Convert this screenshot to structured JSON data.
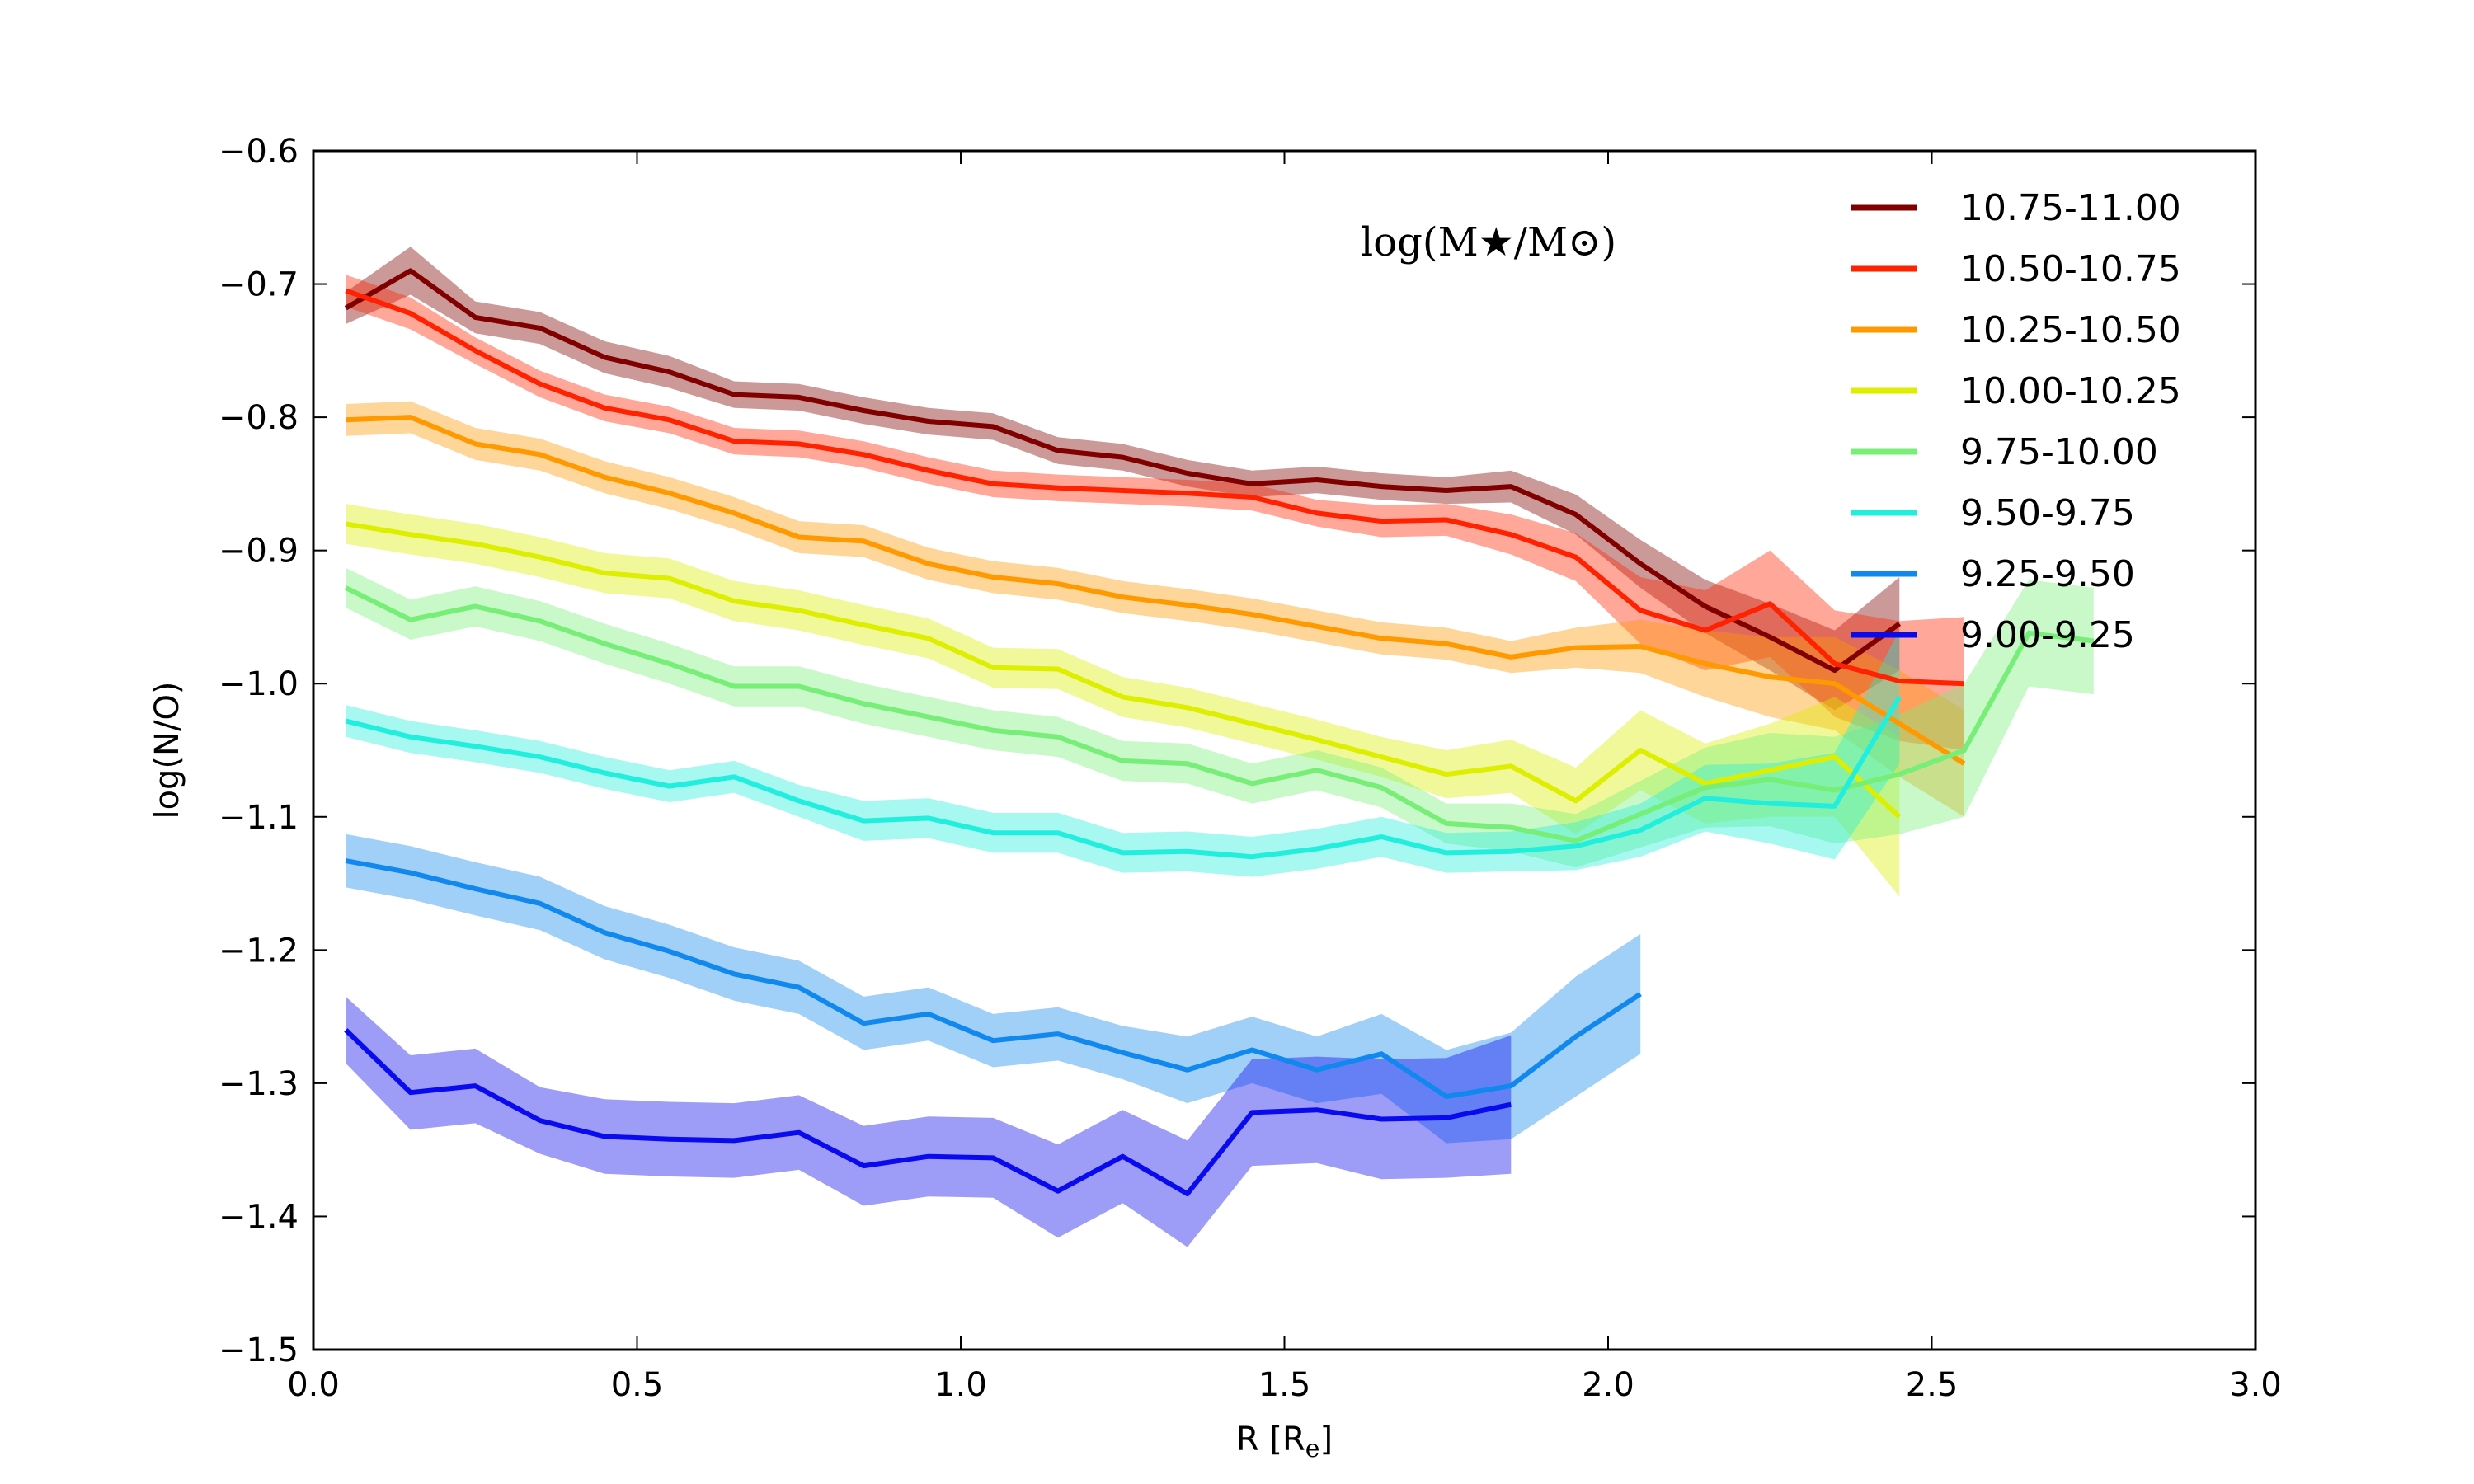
{
  "chart_data": {
    "type": "line",
    "title": "",
    "xlabel": "R [R",
    "xlabel_sub": "e",
    "xlabel_close": "]",
    "ylabel": "log(N/O)",
    "xlim": [
      0.0,
      3.0
    ],
    "ylim": [
      -1.5,
      -0.6
    ],
    "x_ticks": [
      0.0,
      0.5,
      1.0,
      1.5,
      2.0,
      2.5,
      3.0
    ],
    "x_tick_labels": [
      "0.0",
      "0.5",
      "1.0",
      "1.5",
      "2.0",
      "2.5",
      "3.0"
    ],
    "y_ticks": [
      -1.5,
      -1.4,
      -1.3,
      -1.2,
      -1.1,
      -1.0,
      -0.9,
      -0.8,
      -0.7,
      -0.6
    ],
    "y_tick_labels": [
      "−1.5",
      "−1.4",
      "−1.3",
      "−1.2",
      "−1.1",
      "−1.0",
      "−0.9",
      "−0.8",
      "−0.7",
      "−0.6"
    ],
    "legend_title": "log(M★/M⊙)",
    "legend_position": "top-right",
    "series": [
      {
        "name": "10.75-11.00",
        "color": "#800000",
        "x": [
          0.05,
          0.15,
          0.25,
          0.35,
          0.45,
          0.55,
          0.65,
          0.75,
          0.85,
          0.95,
          1.05,
          1.15,
          1.25,
          1.35,
          1.45,
          1.55,
          1.65,
          1.75,
          1.85,
          1.95,
          2.05,
          2.15,
          2.25,
          2.35,
          2.45
        ],
        "values": [
          -0.718,
          -0.69,
          -0.725,
          -0.733,
          -0.755,
          -0.766,
          -0.783,
          -0.785,
          -0.795,
          -0.803,
          -0.807,
          -0.825,
          -0.83,
          -0.842,
          -0.85,
          -0.847,
          -0.852,
          -0.855,
          -0.852,
          -0.873,
          -0.91,
          -0.942,
          -0.965,
          -0.99,
          -0.955
        ],
        "errors": [
          0.012,
          0.018,
          0.012,
          0.012,
          0.012,
          0.012,
          0.01,
          0.01,
          0.01,
          0.01,
          0.01,
          0.01,
          0.01,
          0.01,
          0.01,
          0.01,
          0.01,
          0.01,
          0.012,
          0.015,
          0.018,
          0.02,
          0.025,
          0.03,
          0.035
        ]
      },
      {
        "name": "10.50-10.75",
        "color": "#ff2200",
        "x": [
          0.05,
          0.15,
          0.25,
          0.35,
          0.45,
          0.55,
          0.65,
          0.75,
          0.85,
          0.95,
          1.05,
          1.15,
          1.25,
          1.35,
          1.45,
          1.55,
          1.65,
          1.75,
          1.85,
          1.95,
          2.05,
          2.15,
          2.25,
          2.35,
          2.45,
          2.55
        ],
        "values": [
          -0.705,
          -0.722,
          -0.75,
          -0.775,
          -0.793,
          -0.802,
          -0.818,
          -0.82,
          -0.828,
          -0.84,
          -0.85,
          -0.853,
          -0.855,
          -0.857,
          -0.86,
          -0.872,
          -0.878,
          -0.877,
          -0.888,
          -0.905,
          -0.945,
          -0.96,
          -0.94,
          -0.985,
          -0.998,
          -1.0
        ],
        "errors": [
          0.012,
          0.012,
          0.01,
          0.01,
          0.01,
          0.01,
          0.01,
          0.01,
          0.01,
          0.01,
          0.01,
          0.01,
          0.01,
          0.01,
          0.01,
          0.01,
          0.012,
          0.012,
          0.015,
          0.018,
          0.025,
          0.03,
          0.04,
          0.04,
          0.045,
          0.05
        ]
      },
      {
        "name": "10.25-10.50",
        "color": "#ff9900",
        "x": [
          0.05,
          0.15,
          0.25,
          0.35,
          0.45,
          0.55,
          0.65,
          0.75,
          0.85,
          0.95,
          1.05,
          1.15,
          1.25,
          1.35,
          1.45,
          1.55,
          1.65,
          1.75,
          1.85,
          1.95,
          2.05,
          2.15,
          2.25,
          2.35,
          2.45,
          2.55
        ],
        "values": [
          -0.802,
          -0.8,
          -0.82,
          -0.828,
          -0.845,
          -0.857,
          -0.872,
          -0.89,
          -0.893,
          -0.91,
          -0.92,
          -0.925,
          -0.935,
          -0.941,
          -0.948,
          -0.957,
          -0.966,
          -0.97,
          -0.98,
          -0.973,
          -0.972,
          -0.985,
          -0.995,
          -1.0,
          -1.03,
          -1.06
        ],
        "errors": [
          0.012,
          0.012,
          0.012,
          0.012,
          0.012,
          0.012,
          0.012,
          0.012,
          0.012,
          0.012,
          0.012,
          0.012,
          0.012,
          0.012,
          0.012,
          0.012,
          0.012,
          0.012,
          0.012,
          0.015,
          0.02,
          0.025,
          0.03,
          0.035,
          0.04,
          0.04
        ]
      },
      {
        "name": "10.00-10.25",
        "color": "#ddee00",
        "x": [
          0.05,
          0.15,
          0.25,
          0.35,
          0.45,
          0.55,
          0.65,
          0.75,
          0.85,
          0.95,
          1.05,
          1.15,
          1.25,
          1.35,
          1.45,
          1.55,
          1.65,
          1.75,
          1.85,
          1.95,
          2.05,
          2.15,
          2.25,
          2.35,
          2.45
        ],
        "values": [
          -0.88,
          -0.888,
          -0.895,
          -0.905,
          -0.917,
          -0.921,
          -0.938,
          -0.945,
          -0.956,
          -0.966,
          -0.988,
          -0.989,
          -1.01,
          -1.018,
          -1.03,
          -1.042,
          -1.055,
          -1.068,
          -1.062,
          -1.088,
          -1.05,
          -1.075,
          -1.065,
          -1.055,
          -1.1
        ],
        "errors": [
          0.015,
          0.015,
          0.015,
          0.015,
          0.015,
          0.015,
          0.015,
          0.015,
          0.015,
          0.015,
          0.015,
          0.015,
          0.015,
          0.015,
          0.015,
          0.015,
          0.015,
          0.018,
          0.02,
          0.025,
          0.03,
          0.03,
          0.035,
          0.045,
          0.06
        ]
      },
      {
        "name": "9.75-10.00",
        "color": "#77ee77",
        "x": [
          0.05,
          0.15,
          0.25,
          0.35,
          0.45,
          0.55,
          0.65,
          0.75,
          0.85,
          0.95,
          1.05,
          1.15,
          1.25,
          1.35,
          1.45,
          1.55,
          1.65,
          1.75,
          1.85,
          1.95,
          2.05,
          2.15,
          2.25,
          2.35,
          2.45,
          2.55,
          2.65,
          2.75
        ],
        "values": [
          -0.928,
          -0.952,
          -0.942,
          -0.953,
          -0.97,
          -0.985,
          -1.002,
          -1.002,
          -1.015,
          -1.025,
          -1.035,
          -1.04,
          -1.058,
          -1.06,
          -1.075,
          -1.065,
          -1.078,
          -1.105,
          -1.108,
          -1.118,
          -1.098,
          -1.078,
          -1.072,
          -1.08,
          -1.068,
          -1.05,
          -0.962,
          -0.968
        ],
        "errors": [
          0.015,
          0.015,
          0.015,
          0.015,
          0.015,
          0.015,
          0.015,
          0.015,
          0.015,
          0.015,
          0.015,
          0.015,
          0.015,
          0.015,
          0.015,
          0.015,
          0.015,
          0.015,
          0.018,
          0.02,
          0.025,
          0.03,
          0.035,
          0.04,
          0.045,
          0.05,
          0.04,
          0.04
        ]
      },
      {
        "name": "9.50-9.75",
        "color": "#22eedd",
        "x": [
          0.05,
          0.15,
          0.25,
          0.35,
          0.45,
          0.55,
          0.65,
          0.75,
          0.85,
          0.95,
          1.05,
          1.15,
          1.25,
          1.35,
          1.45,
          1.55,
          1.65,
          1.75,
          1.85,
          1.95,
          2.05,
          2.15,
          2.25,
          2.35,
          2.45
        ],
        "values": [
          -1.028,
          -1.04,
          -1.047,
          -1.055,
          -1.067,
          -1.077,
          -1.07,
          -1.088,
          -1.103,
          -1.101,
          -1.112,
          -1.112,
          -1.127,
          -1.126,
          -1.13,
          -1.124,
          -1.115,
          -1.127,
          -1.126,
          -1.122,
          -1.11,
          -1.086,
          -1.09,
          -1.092,
          -1.01
        ],
        "errors": [
          0.012,
          0.012,
          0.012,
          0.012,
          0.012,
          0.012,
          0.012,
          0.012,
          0.015,
          0.015,
          0.015,
          0.015,
          0.015,
          0.015,
          0.015,
          0.015,
          0.015,
          0.015,
          0.015,
          0.018,
          0.02,
          0.025,
          0.03,
          0.04,
          0.05
        ]
      },
      {
        "name": "9.25-9.50",
        "color": "#1188ee",
        "x": [
          0.05,
          0.15,
          0.25,
          0.35,
          0.45,
          0.55,
          0.65,
          0.75,
          0.85,
          0.95,
          1.05,
          1.15,
          1.25,
          1.35,
          1.45,
          1.55,
          1.65,
          1.75,
          1.85,
          1.95,
          2.05
        ],
        "values": [
          -1.133,
          -1.142,
          -1.154,
          -1.165,
          -1.187,
          -1.201,
          -1.218,
          -1.228,
          -1.255,
          -1.248,
          -1.268,
          -1.263,
          -1.277,
          -1.29,
          -1.275,
          -1.29,
          -1.278,
          -1.31,
          -1.302,
          -1.265,
          -1.233
        ],
        "errors": [
          0.02,
          0.02,
          0.02,
          0.02,
          0.02,
          0.02,
          0.02,
          0.02,
          0.02,
          0.02,
          0.02,
          0.02,
          0.02,
          0.025,
          0.025,
          0.025,
          0.03,
          0.035,
          0.04,
          0.045,
          0.045
        ]
      },
      {
        "name": "9.00-9.25",
        "color": "#0a0aee",
        "x": [
          0.05,
          0.15,
          0.25,
          0.35,
          0.45,
          0.55,
          0.65,
          0.75,
          0.85,
          0.95,
          1.05,
          1.15,
          1.25,
          1.35,
          1.45,
          1.55,
          1.65,
          1.75,
          1.85
        ],
        "values": [
          -1.26,
          -1.307,
          -1.302,
          -1.328,
          -1.34,
          -1.342,
          -1.343,
          -1.337,
          -1.362,
          -1.355,
          -1.356,
          -1.381,
          -1.355,
          -1.383,
          -1.322,
          -1.32,
          -1.327,
          -1.326,
          -1.316
        ],
        "errors": [
          0.025,
          0.028,
          0.028,
          0.025,
          0.028,
          0.028,
          0.028,
          0.028,
          0.03,
          0.03,
          0.03,
          0.035,
          0.035,
          0.04,
          0.04,
          0.04,
          0.045,
          0.045,
          0.052
        ]
      }
    ]
  }
}
